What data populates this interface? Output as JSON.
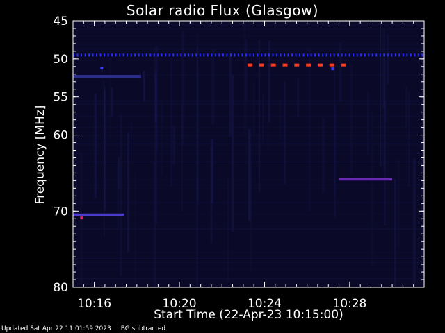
{
  "chart_data": {
    "type": "heatmap",
    "title": "Solar radio Flux (Glasgow)",
    "xlabel": "Start Time (22-Apr-23 10:15:00)",
    "ylabel": "Frequency [MHz]",
    "x_unit": "minutes after 10:15:00",
    "xlim": [
      0.0,
      16.5
    ],
    "ylim": [
      45,
      80
    ],
    "y_ticks": [
      45,
      50,
      55,
      60,
      70,
      80
    ],
    "x_ticks": [
      {
        "value": 1,
        "label": "10:16"
      },
      {
        "value": 5,
        "label": "10:20"
      },
      {
        "value": 9,
        "label": "10:24"
      },
      {
        "value": 13,
        "label": "10:28"
      }
    ],
    "background_color": "#0a0a28",
    "features": [
      {
        "kind": "dotted_line",
        "freq": 49.5,
        "x_start": 0.0,
        "x_end": 16.5,
        "step": 0.18,
        "color": "#2a2aff"
      },
      {
        "kind": "dashed_line",
        "freq": 50.8,
        "x_start": 8.2,
        "x_end": 13.0,
        "step": 0.55,
        "color": "#ff3a1a"
      },
      {
        "kind": "band",
        "freq": 52.3,
        "x_start": 0.0,
        "x_end": 3.2,
        "color": "#2c2c8a"
      },
      {
        "kind": "band",
        "freq": 65.8,
        "x_start": 12.5,
        "x_end": 15.0,
        "color": "#6a2ab0"
      },
      {
        "kind": "band",
        "freq": 70.5,
        "x_start": 0.0,
        "x_end": 2.4,
        "color": "#4a3ad0"
      },
      {
        "kind": "spot",
        "freq": 51.2,
        "x": 1.35,
        "color": "#3a3aff"
      },
      {
        "kind": "spot",
        "freq": 51.3,
        "x": 12.2,
        "color": "#3a3aff"
      },
      {
        "kind": "spot",
        "freq": 70.9,
        "x": 0.4,
        "color": "#d02a6a"
      }
    ]
  },
  "footer": {
    "updated": "Updated Sat Apr 22 11:01:59 2023",
    "note": "BG subtracted"
  }
}
